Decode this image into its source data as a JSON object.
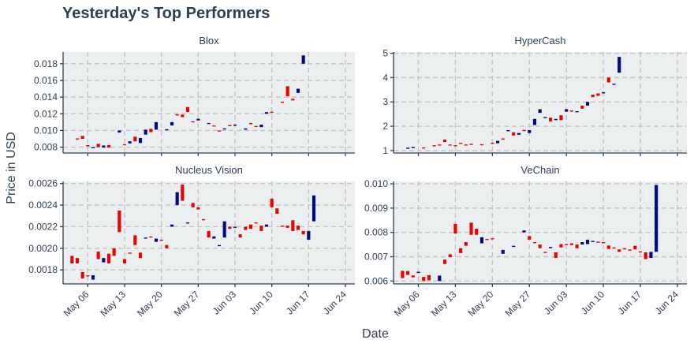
{
  "chart_data": {
    "type": "candlestick",
    "title": "Yesterday's Top Performers",
    "xlabel": "Date",
    "ylabel": "Price in USD",
    "colors": {
      "up": "#000a7e",
      "down": "#ee0000"
    },
    "x_ticks": [
      "May 06",
      "May 13",
      "May 20",
      "May 27",
      "Jun 03",
      "Jun 10",
      "Jun 17",
      "Jun 24"
    ],
    "x_tick_days": [
      4,
      11,
      18,
      25,
      32,
      39,
      46,
      53
    ],
    "x_range": [
      -0.7,
      54.8
    ],
    "grid": true,
    "panels": [
      {
        "name": "Blox",
        "ylim": [
          0.0073,
          0.0194
        ],
        "y_ticks": [
          0.008,
          0.01,
          0.012,
          0.014,
          0.016,
          0.018
        ],
        "y_tick_labels": [
          "0.008",
          "0.010",
          "0.012",
          "0.014",
          "0.016",
          "0.018"
        ],
        "candles": [
          [
            2,
            0.00905,
            0.00895
          ],
          [
            3,
            0.00935,
            0.009
          ],
          [
            4,
            0.00825,
            0.0081
          ],
          [
            5,
            0.0079,
            0.008
          ],
          [
            6,
            0.0084,
            0.008
          ],
          [
            7,
            0.00795,
            0.0082
          ],
          [
            8,
            0.00825,
            0.00795
          ],
          [
            10,
            0.00975,
            0.01
          ],
          [
            11,
            0.00835,
            0.00825
          ],
          [
            12,
            0.00845,
            0.0087
          ],
          [
            13,
            0.00925,
            0.0087
          ],
          [
            14,
            0.0085,
            0.0091
          ],
          [
            15,
            0.0095,
            0.0101
          ],
          [
            16,
            0.0102,
            0.0098
          ],
          [
            17,
            0.0101,
            0.011
          ],
          [
            19,
            0.0101,
            0.01015
          ],
          [
            20,
            0.0106,
            0.011
          ],
          [
            21,
            0.01195,
            0.0118
          ],
          [
            22,
            0.0119,
            0.0116
          ],
          [
            23,
            0.0128,
            0.0122
          ],
          [
            24,
            0.0111,
            0.011
          ],
          [
            25,
            0.0112,
            0.0114
          ],
          [
            27,
            0.01085,
            0.0109
          ],
          [
            28,
            0.0106,
            0.0105
          ],
          [
            29,
            0.01,
            0.0099
          ],
          [
            30,
            0.0102,
            0.01025
          ],
          [
            31,
            0.01065,
            0.0106
          ],
          [
            32,
            0.01065,
            0.0107
          ],
          [
            34,
            0.0101,
            0.01025
          ],
          [
            35,
            0.0109,
            0.01075
          ],
          [
            36,
            0.01055,
            0.01045
          ],
          [
            37,
            0.0104,
            0.0107
          ],
          [
            38,
            0.012,
            0.0122
          ],
          [
            39,
            0.01225,
            0.01215
          ],
          [
            41,
            0.01345,
            0.01335
          ],
          [
            42,
            0.0153,
            0.0141
          ],
          [
            43,
            0.0138,
            0.0136
          ],
          [
            44,
            0.0145,
            0.015
          ],
          [
            45,
            0.018,
            0.019
          ]
        ]
      },
      {
        "name": "HyperCash",
        "ylim": [
          0.9,
          5.05
        ],
        "y_ticks": [
          1,
          2,
          3,
          4,
          5
        ],
        "y_tick_labels": [
          "1",
          "2",
          "3",
          "4",
          "5"
        ],
        "candles": [
          [
            2,
            1.1,
            1.12
          ],
          [
            3,
            1.13,
            1.15
          ],
          [
            5,
            1.13,
            1.12
          ],
          [
            7,
            1.22,
            1.2
          ],
          [
            8,
            1.25,
            1.22
          ],
          [
            9,
            1.45,
            1.35
          ],
          [
            10,
            1.25,
            1.22
          ],
          [
            11,
            1.22,
            1.21
          ],
          [
            12,
            1.32,
            1.28
          ],
          [
            13,
            1.25,
            1.22
          ],
          [
            14,
            1.28,
            1.25
          ],
          [
            16,
            1.26,
            1.25
          ],
          [
            18,
            1.32,
            1.28
          ],
          [
            19,
            1.3,
            1.4
          ],
          [
            20,
            1.5,
            1.45
          ],
          [
            21,
            1.82,
            1.84
          ],
          [
            22,
            1.75,
            1.62
          ],
          [
            23,
            1.65,
            1.72
          ],
          [
            24,
            1.85,
            1.8
          ],
          [
            25,
            1.72,
            1.84
          ],
          [
            26,
            2.05,
            2.3
          ],
          [
            27,
            2.55,
            2.7
          ],
          [
            28,
            2.35,
            2.38
          ],
          [
            29,
            2.35,
            2.2
          ],
          [
            30,
            2.25,
            2.3
          ],
          [
            31,
            2.45,
            2.25
          ],
          [
            32,
            2.6,
            2.7
          ],
          [
            33,
            2.65,
            2.6
          ],
          [
            34,
            2.6,
            2.62
          ],
          [
            35,
            2.85,
            2.72
          ],
          [
            36,
            2.85,
            3.0
          ],
          [
            37,
            3.3,
            3.2
          ],
          [
            38,
            3.35,
            3.25
          ],
          [
            39,
            3.35,
            3.4
          ],
          [
            40,
            4.0,
            3.8
          ],
          [
            41,
            3.72,
            3.75
          ],
          [
            42,
            4.2,
            4.85
          ]
        ]
      },
      {
        "name": "Nucleus Vision",
        "ylim": [
          0.00167,
          0.00262
        ],
        "y_ticks": [
          0.0018,
          0.002,
          0.0022,
          0.0024,
          0.0026
        ],
        "y_tick_labels": [
          "0.0018",
          "0.0020",
          "0.0022",
          "0.0024",
          "0.0026"
        ],
        "candles": [
          [
            1,
            0.00193,
            0.00186
          ],
          [
            2,
            0.00191,
            0.00186
          ],
          [
            3,
            0.00178,
            0.00172
          ],
          [
            4,
            0.00175,
            0.00174
          ],
          [
            5,
            0.00171,
            0.00175
          ],
          [
            6,
            0.00197,
            0.0019
          ],
          [
            7,
            0.00187,
            0.00191
          ],
          [
            8,
            0.00195,
            0.00186
          ],
          [
            9,
            0.002,
            0.00193
          ],
          [
            10,
            0.00235,
            0.00215
          ],
          [
            11,
            0.0019,
            0.00186
          ],
          [
            12,
            0.00196,
            0.00195
          ],
          [
            13,
            0.00212,
            0.00203
          ],
          [
            14,
            0.00196,
            0.00191
          ],
          [
            15,
            0.00209,
            0.0021
          ],
          [
            16,
            0.00211,
            0.0021
          ],
          [
            17,
            0.00206,
            0.00209
          ],
          [
            18,
            0.00208,
            0.00207
          ],
          [
            19,
            0.00203,
            0.002
          ],
          [
            20,
            0.0022,
            0.00222
          ],
          [
            21,
            0.0024,
            0.00252
          ],
          [
            22,
            0.00259,
            0.00244
          ],
          [
            23,
            0.00223,
            0.00224
          ],
          [
            24,
            0.00242,
            0.00238
          ],
          [
            25,
            0.00238,
            0.00236
          ],
          [
            26,
            0.00227,
            0.00226
          ],
          [
            27,
            0.00216,
            0.0021
          ],
          [
            28,
            0.00209,
            0.00211
          ],
          [
            29,
            0.00202,
            0.00203
          ],
          [
            30,
            0.0021,
            0.00225
          ],
          [
            31,
            0.0022,
            0.00218
          ],
          [
            32,
            0.00219,
            0.0022
          ],
          [
            33,
            0.00213,
            0.0021
          ],
          [
            34,
            0.0022,
            0.00217
          ],
          [
            35,
            0.00222,
            0.00218
          ],
          [
            36,
            0.00224,
            0.00223
          ],
          [
            37,
            0.00221,
            0.00216
          ],
          [
            38,
            0.0022,
            0.00222
          ],
          [
            39,
            0.00246,
            0.00238
          ],
          [
            40,
            0.00237,
            0.00232
          ],
          [
            41,
            0.00221,
            0.0022
          ],
          [
            42,
            0.00221,
            0.00219
          ],
          [
            43,
            0.00226,
            0.00216
          ],
          [
            44,
            0.00221,
            0.00217
          ],
          [
            45,
            0.00216,
            0.00213
          ],
          [
            46,
            0.00208,
            0.00216
          ],
          [
            47,
            0.00225,
            0.00249
          ]
        ]
      },
      {
        "name": "VeChain",
        "ylim": [
          0.00588,
          0.0101
        ],
        "y_ticks": [
          0.006,
          0.007,
          0.008,
          0.009,
          0.01
        ],
        "y_tick_labels": [
          "0.006",
          "0.007",
          "0.008",
          "0.009",
          "0.010"
        ],
        "candles": [
          [
            1,
            0.00642,
            0.00612
          ],
          [
            2,
            0.00641,
            0.00625
          ],
          [
            3,
            0.00623,
            0.00615
          ],
          [
            4,
            0.00633,
            0.00638
          ],
          [
            5,
            0.00617,
            0.006
          ],
          [
            6,
            0.00624,
            0.00603
          ],
          [
            8,
            0.006,
            0.00622
          ],
          [
            9,
            0.00688,
            0.0067
          ],
          [
            10,
            0.0071,
            0.00698
          ],
          [
            11,
            0.00835,
            0.00795
          ],
          [
            12,
            0.00735,
            0.00715
          ],
          [
            13,
            0.0076,
            0.00745
          ],
          [
            14,
            0.0084,
            0.0079
          ],
          [
            15,
            0.00815,
            0.0079
          ],
          [
            16,
            0.00755,
            0.0078
          ],
          [
            17,
            0.00773,
            0.00772
          ],
          [
            18,
            0.00776,
            0.00774
          ],
          [
            20,
            0.00712,
            0.00728
          ],
          [
            22,
            0.00742,
            0.00745
          ],
          [
            24,
            0.008,
            0.00808
          ],
          [
            25,
            0.00785,
            0.0077
          ],
          [
            26,
            0.0076,
            0.00758
          ],
          [
            27,
            0.0075,
            0.00735
          ],
          [
            28,
            0.0072,
            0.00718
          ],
          [
            29,
            0.00735,
            0.0074
          ],
          [
            30,
            0.00718,
            0.00695
          ],
          [
            31,
            0.00752,
            0.00738
          ],
          [
            32,
            0.00752,
            0.0075
          ],
          [
            33,
            0.00755,
            0.00748
          ],
          [
            34,
            0.0075,
            0.00735
          ],
          [
            35,
            0.0075,
            0.0076
          ],
          [
            36,
            0.00752,
            0.0077
          ],
          [
            37,
            0.00762,
            0.00765
          ],
          [
            38,
            0.00762,
            0.0076
          ],
          [
            39,
            0.0076,
            0.00758
          ],
          [
            40,
            0.00746,
            0.00732
          ],
          [
            41,
            0.00738,
            0.00734
          ],
          [
            42,
            0.0073,
            0.0072
          ],
          [
            43,
            0.00735,
            0.0073
          ],
          [
            44,
            0.0073,
            0.00725
          ],
          [
            45,
            0.00745,
            0.0073
          ],
          [
            46,
            0.00722,
            0.0072
          ],
          [
            47,
            0.00718,
            0.0069
          ],
          [
            48,
            0.00695,
            0.0072
          ],
          [
            49,
            0.0072,
            0.00995
          ]
        ]
      }
    ]
  }
}
